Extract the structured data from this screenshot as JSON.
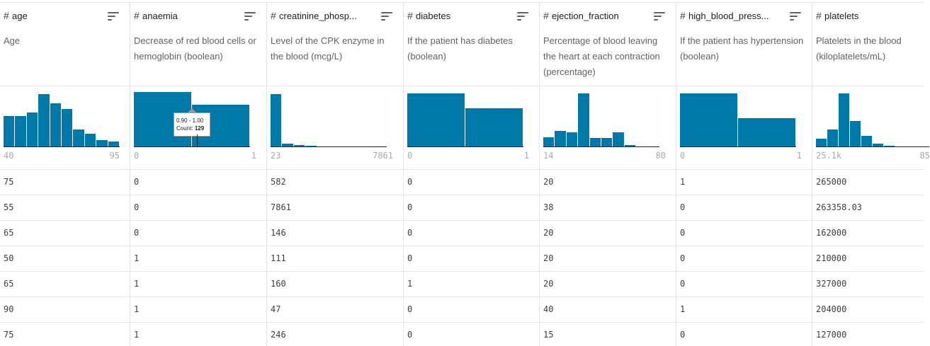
{
  "columns": [
    {
      "name": "age",
      "type_symbol": "#",
      "description": "Age",
      "range_min": "40",
      "range_max": "95",
      "hist": [
        0.56,
        0.56,
        0.63,
        0.96,
        0.8,
        0.69,
        0.32,
        0.24,
        0.13,
        0.1
      ]
    },
    {
      "name": "anaemia",
      "type_symbol": "#",
      "description": "Decrease of red blood cells or hemoglobin (boolean)",
      "range_min": "0",
      "range_max": "1",
      "hist": [
        1.0,
        0.77
      ]
    },
    {
      "name": "creatinine_phosp...",
      "type_symbol": "#",
      "description": "Level of the CPK enzyme in the blood (mcg/L)",
      "range_min": "23",
      "range_max": "7861",
      "hist": [
        0.96,
        0.07,
        0.04,
        0.02,
        0.01,
        0.01,
        0.01,
        0.0,
        0.0,
        0.01
      ]
    },
    {
      "name": "diabetes",
      "type_symbol": "#",
      "description": "If the patient has diabetes (boolean)",
      "range_min": "0",
      "range_max": "1",
      "hist": [
        0.98,
        0.71
      ]
    },
    {
      "name": "ejection_fraction",
      "type_symbol": "#",
      "description": "Percentage of blood leaving the heart at each contraction (percentage)",
      "range_min": "14",
      "range_max": "80",
      "hist": [
        0.18,
        0.29,
        0.27,
        0.97,
        0.17,
        0.17,
        0.27,
        0.04,
        0.0,
        0.0
      ]
    },
    {
      "name": "high_blood_press...",
      "type_symbol": "#",
      "description": "If the patient has hypertension (boolean)",
      "range_min": "0",
      "range_max": "1",
      "hist": [
        0.97,
        0.53
      ]
    },
    {
      "name": "platelets",
      "type_symbol": "#",
      "description": "Platelets in the blood (kiloplatelets/mL)",
      "range_min": "25.1k",
      "range_max": "85",
      "hist": [
        0.16,
        0.32,
        0.97,
        0.47,
        0.2,
        0.07,
        0.02,
        0.0,
        0.0,
        0.0
      ]
    }
  ],
  "tooltip": {
    "range": "0.90 - 1.00",
    "count_label": "Count:",
    "count_value": "129"
  },
  "rows": [
    [
      "75",
      "0",
      "582",
      "0",
      "20",
      "1",
      "265000"
    ],
    [
      "55",
      "0",
      "7861",
      "0",
      "38",
      "0",
      "263358.03"
    ],
    [
      "65",
      "0",
      "146",
      "0",
      "20",
      "0",
      "162000"
    ],
    [
      "50",
      "1",
      "111",
      "0",
      "20",
      "0",
      "210000"
    ],
    [
      "65",
      "1",
      "160",
      "1",
      "20",
      "0",
      "327000"
    ],
    [
      "90",
      "1",
      "47",
      "0",
      "40",
      "1",
      "204000"
    ],
    [
      "75",
      "1",
      "246",
      "0",
      "15",
      "0",
      "127000"
    ]
  ],
  "colors": {
    "bar": "#0079a8",
    "text": "#202124",
    "muted": "#5f6368"
  }
}
